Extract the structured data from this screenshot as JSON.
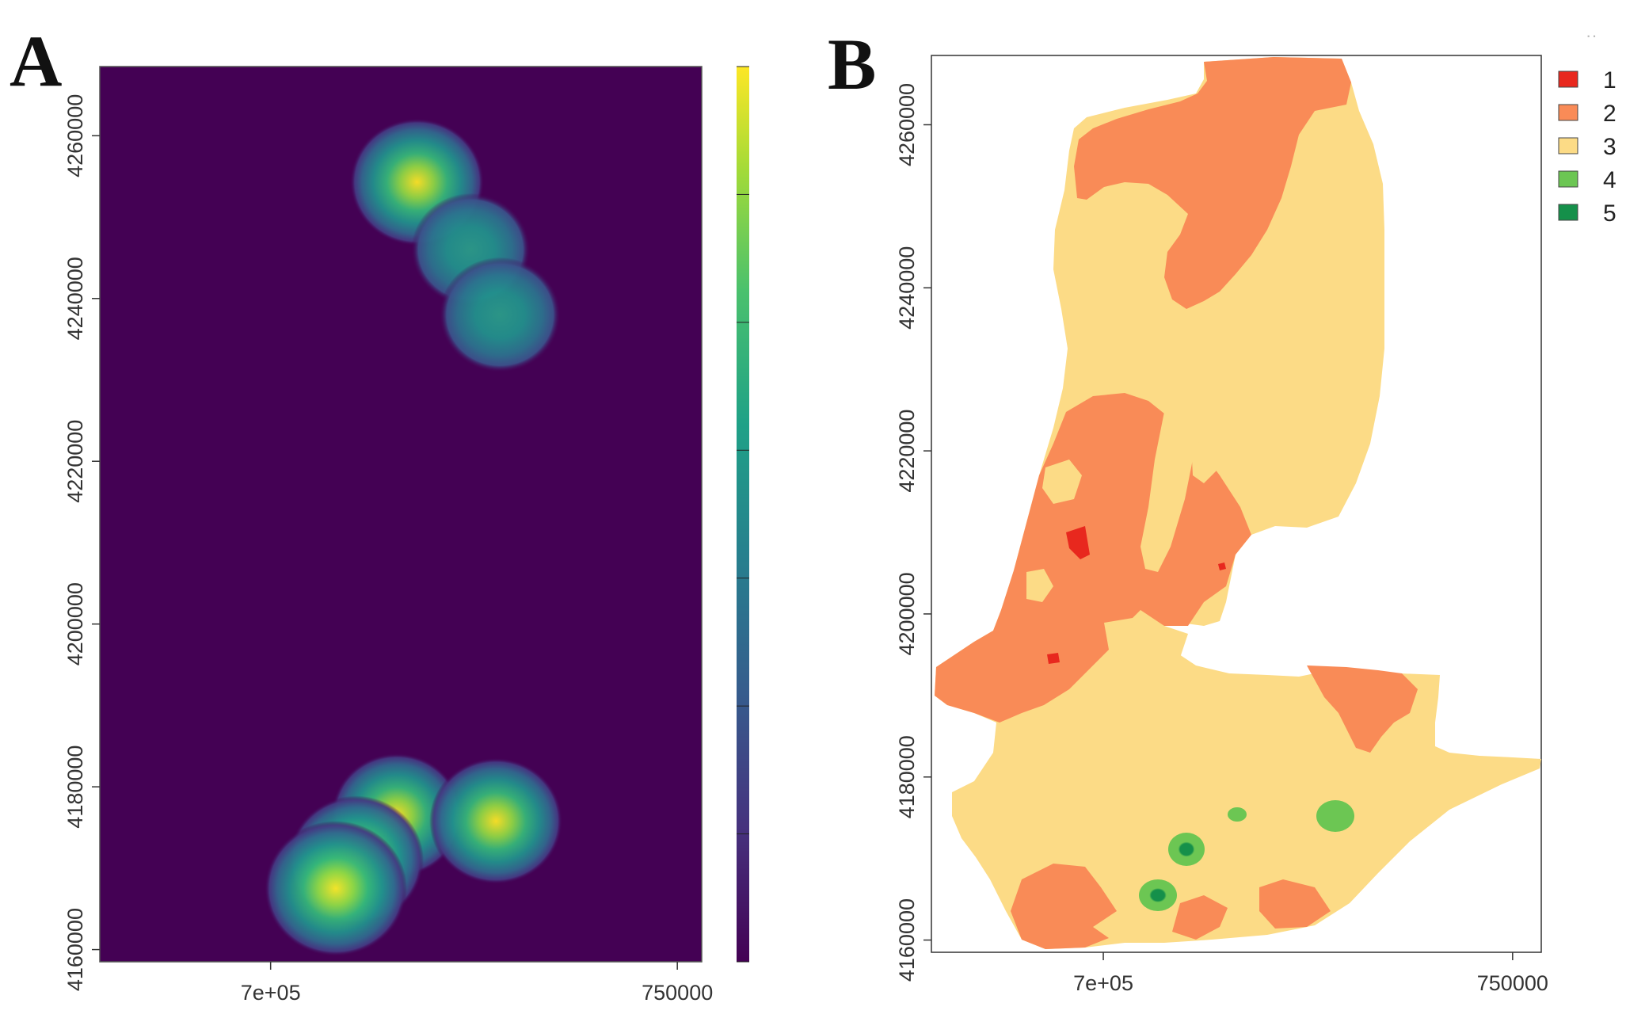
{
  "figure": {
    "panels": [
      {
        "letter": "A",
        "type": "raster-heatmap",
        "colormap": [
          "#440154",
          "#3b528b",
          "#21918c",
          "#5ec962",
          "#fde725"
        ],
        "background_value_color": "#440154",
        "x_axis": {
          "range": [
            679000,
            753000
          ],
          "ticks": [
            "7e+05",
            "750000"
          ],
          "tick_values": [
            700000,
            750000
          ]
        },
        "y_axis": {
          "range": [
            4158500,
            4268500
          ],
          "ticks": [
            "4160000",
            "4180000",
            "4200000",
            "4220000",
            "4240000",
            "4260000"
          ],
          "tick_values": [
            4160000,
            4180000,
            4200000,
            4220000,
            4240000,
            4260000
          ]
        },
        "colorbar": {
          "tick_labels": [],
          "segments": 7
        },
        "hotspots": [
          {
            "x": 718000,
            "y": 4254300,
            "intensity": 0.82
          },
          {
            "x": 724600,
            "y": 4246000,
            "intensity": 0.5
          },
          {
            "x": 728200,
            "y": 4238000,
            "intensity": 0.55
          },
          {
            "x": 715500,
            "y": 4176500,
            "intensity": 0.75
          },
          {
            "x": 727700,
            "y": 4175800,
            "intensity": 0.8
          },
          {
            "x": 710500,
            "y": 4171000,
            "intensity": 0.85
          },
          {
            "x": 708000,
            "y": 4167500,
            "intensity": 1.0
          }
        ]
      },
      {
        "letter": "B",
        "type": "categorical-map",
        "x_axis": {
          "range": [
            679000,
            753500
          ],
          "ticks": [
            "7e+05",
            "750000"
          ],
          "tick_values": [
            700000,
            750000
          ]
        },
        "y_axis": {
          "range": [
            4158500,
            4268500
          ],
          "ticks": [
            "4160000",
            "4180000",
            "4200000",
            "4220000",
            "4240000",
            "4260000"
          ],
          "tick_values": [
            4160000,
            4180000,
            4200000,
            4220000,
            4240000,
            4260000
          ]
        },
        "legend": {
          "placement": "top-right",
          "items": [
            {
              "label": "1",
              "color": "#e8281e"
            },
            {
              "label": "2",
              "color": "#f98b57"
            },
            {
              "label": "3",
              "color": "#fcdb86"
            },
            {
              "label": "4",
              "color": "#6cc653"
            },
            {
              "label": "5",
              "color": "#15904a"
            }
          ]
        }
      }
    ]
  }
}
